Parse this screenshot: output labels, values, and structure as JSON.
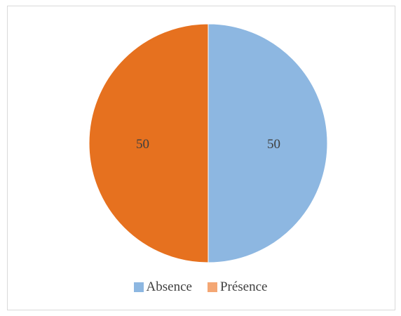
{
  "chart_data": {
    "type": "pie",
    "title": "",
    "categories": [
      "Absence",
      "Présence"
    ],
    "values": [
      50,
      50
    ],
    "labels": [
      "50",
      "50"
    ],
    "colors": [
      "#8DB7E1",
      "#E6711F"
    ],
    "legend_colors": [
      "#8DB7E1",
      "#F4A774"
    ],
    "legend_position": "bottom",
    "start_direction": "top",
    "direction": "clockwise"
  }
}
